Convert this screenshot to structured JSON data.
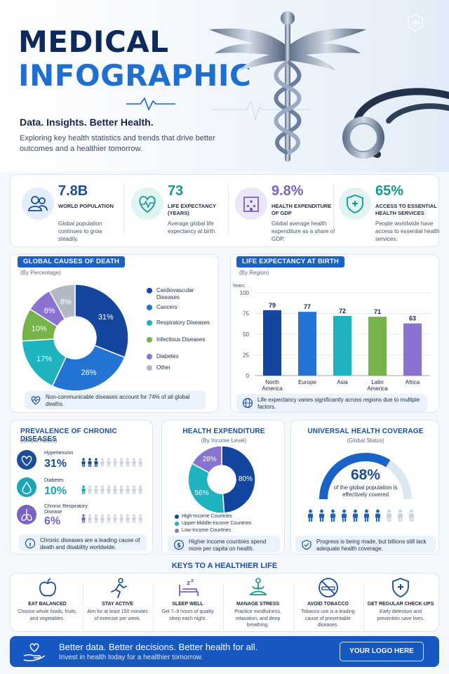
{
  "hero": {
    "title_line1": "MEDICAL",
    "title_line2": "INFOGRAPHIC",
    "tagline": "Data. Insights. Better Health.",
    "intro": "Exploring key health statistics and trends that drive better outcomes and a healthier tomorrow."
  },
  "stats": [
    {
      "value": "7.8B",
      "label": "WORLD POPULATION",
      "desc": "Global population continues to grow steadily.",
      "icon": "people-icon",
      "color": "#1a4d9c"
    },
    {
      "value": "73",
      "label": "LIFE EXPECTANCY (YEARS)",
      "desc": "Average global life expectancy at birth.",
      "icon": "heart-pulse-icon",
      "color": "#139a8c"
    },
    {
      "value": "9.8%",
      "label": "HEALTH EXPENDITURE OF GDP",
      "desc": "Global average health expenditure as a share of GDP.",
      "icon": "hospital-icon",
      "color": "#7b61c4"
    },
    {
      "value": "65%",
      "label": "ACCESS TO ESSENTIAL HEALTH SERVICES",
      "desc": "People worldwide have access to essential health services.",
      "icon": "shield-cross-icon",
      "color": "#139a8c"
    }
  ],
  "causes": {
    "title": "GLOBAL CAUSES OF DEATH",
    "subtitle": "(By Percentage)",
    "note": "Non-communicable diseases account for 74% of all global deaths."
  },
  "life": {
    "title": "LIFE EXPECTANCY AT BIRTH",
    "subtitle": "(By Region)",
    "ylabel": "Years",
    "note": "Life expectancy varies significantly across regions due to multiple factors."
  },
  "chronic": {
    "title": "PREVALENCE OF CHRONIC DISEASES",
    "subtitle": "(Global Adults)",
    "items": [
      {
        "name": "Hypertension",
        "value": "31%",
        "fraction": 0.31,
        "color": "#1a4d9c",
        "icon": "heart-pulse-icon"
      },
      {
        "name": "Diabetes",
        "value": "10%",
        "fraction": 0.1,
        "color": "#1aa6b4",
        "icon": "blood-drop-icon"
      },
      {
        "name": "Chronic Respiratory Disease",
        "value": "6%",
        "fraction": 0.06,
        "color": "#7b61c4",
        "icon": "lungs-icon"
      }
    ],
    "note": "Chronic diseases are a leading cause of death and disability worldwide."
  },
  "expenditure": {
    "title": "HEALTH EXPENDITURE",
    "subtitle": "(By Income Level)",
    "note": "Higher income countries spend more per capita on health."
  },
  "coverage": {
    "title": "UNIVERSAL HEALTH COVERAGE",
    "subtitle": "(Global Status)",
    "value": "68%",
    "fraction": 0.68,
    "desc": "of the global population is effectively covered",
    "note": "Progress is being made, but billions still lack adequate health coverage."
  },
  "keys": {
    "title": "KEYS TO A HEALTHIER LIFE",
    "items": [
      {
        "title": "EAT BALANCED",
        "desc": "Choose whole foods, fruits, and vegetables.",
        "icon": "apple-icon"
      },
      {
        "title": "STAY ACTIVE",
        "desc": "Aim for at least 150 minutes of exercise per week.",
        "icon": "running-icon"
      },
      {
        "title": "SLEEP WELL",
        "desc": "Get 7–9 hours of quality sleep each night.",
        "icon": "bed-icon"
      },
      {
        "title": "MANAGE STRESS",
        "desc": "Practice mindfulness, relaxation, and deep breathing.",
        "icon": "meditation-icon"
      },
      {
        "title": "AVOID TOBACCO",
        "desc": "Tobacco use is a leading cause of preventable diseases.",
        "icon": "no-smoking-icon"
      },
      {
        "title": "GET REGULAR CHECK-UPS",
        "desc": "Early detection and prevention save lives.",
        "icon": "shield-check-icon"
      }
    ]
  },
  "footer": {
    "headline": "Better data. Better decisions. Better health for all.",
    "sub": "Invest in health today for a healthier tomorrow.",
    "logo": "YOUR LOGO HERE"
  },
  "chart_data": [
    {
      "type": "pie",
      "title": "GLOBAL CAUSES OF DEATH",
      "categories": [
        "Cardiovascular Diseases",
        "Cancers",
        "Respiratory Diseases",
        "Infectious Diseases",
        "Diabetes",
        "Other"
      ],
      "values": [
        31,
        26,
        17,
        10,
        8,
        8
      ],
      "labels": [
        "31%",
        "26%",
        "17%",
        "10%",
        "8%",
        "8%"
      ],
      "colors": [
        "#1446a0",
        "#2474d4",
        "#1eb3bf",
        "#76b34a",
        "#8a72d0",
        "#b3b9c4"
      ],
      "legend": "right"
    },
    {
      "type": "bar",
      "title": "LIFE EXPECTANCY AT BIRTH",
      "categories": [
        "North America",
        "Europe",
        "Asia",
        "Latin America",
        "Africa"
      ],
      "values": [
        79,
        77,
        72,
        71,
        63
      ],
      "colors": [
        "#1446a0",
        "#2474d4",
        "#1eb3bf",
        "#76b34a",
        "#8a72d0"
      ],
      "ylabel": "Years",
      "ylim": [
        0,
        100
      ],
      "yticks": [
        0,
        25,
        50,
        75,
        100
      ],
      "grid": true
    },
    {
      "type": "pie",
      "title": "HEALTH EXPENDITURE",
      "categories": [
        "High-Income Countries",
        "Upper-Middle-Income Countries",
        "Low-Income Countries"
      ],
      "values": [
        80,
        56,
        28
      ],
      "labels": [
        "80%",
        "56%",
        "28%"
      ],
      "colors": [
        "#1446a0",
        "#1eb3bf",
        "#8a72d0"
      ],
      "legend": "bottom"
    }
  ]
}
